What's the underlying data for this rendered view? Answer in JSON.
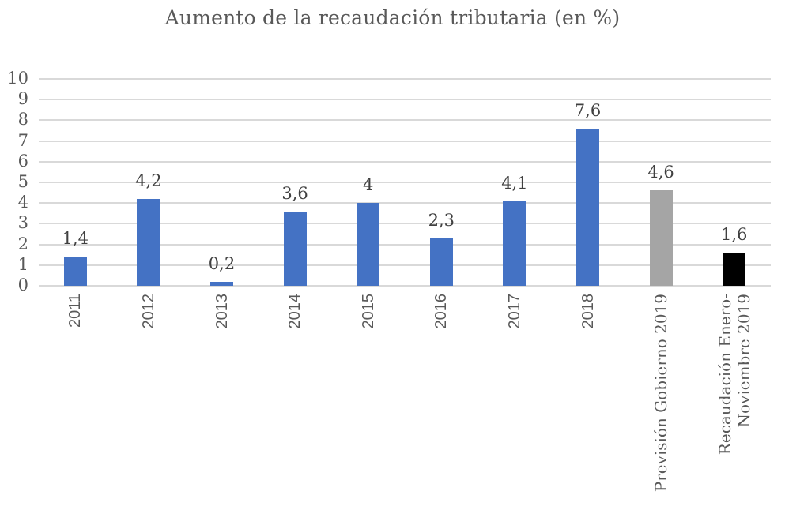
{
  "chart_data": {
    "type": "bar",
    "title": "Aumento de la recaudación tributaria (en %)",
    "xlabel": "",
    "ylabel": "",
    "ylim": [
      0,
      10
    ],
    "yticks": [
      "0",
      "1",
      "2",
      "3",
      "4",
      "5",
      "6",
      "7",
      "8",
      "9",
      "10"
    ],
    "grid": true,
    "legend": null,
    "categories": [
      "2011",
      "2012",
      "2013",
      "2014",
      "2015",
      "2016",
      "2017",
      "2018",
      "Previsión Gobierno 2019",
      "Recaudación Enero-Noviembre 2019"
    ],
    "values": [
      1.4,
      4.2,
      0.2,
      3.6,
      4.0,
      2.3,
      4.1,
      7.6,
      4.6,
      1.6
    ],
    "data_labels": [
      "1,4",
      "4,2",
      "0,2",
      "3,6",
      "4",
      "2,3",
      "4,1",
      "7,6",
      "4,6",
      "1,6"
    ],
    "bar_colors": [
      "#4472c4",
      "#4472c4",
      "#4472c4",
      "#4472c4",
      "#4472c4",
      "#4472c4",
      "#4472c4",
      "#4472c4",
      "#a5a5a5",
      "#000000"
    ],
    "xlabel_lines": [
      [
        "2011"
      ],
      [
        "2012"
      ],
      [
        "2013"
      ],
      [
        "2014"
      ],
      [
        "2015"
      ],
      [
        "2016"
      ],
      [
        "2017"
      ],
      [
        "2018"
      ],
      [
        "Previsión Gobierno 2019"
      ],
      [
        "Recaudación Enero-",
        "Noviembre 2019"
      ]
    ]
  }
}
